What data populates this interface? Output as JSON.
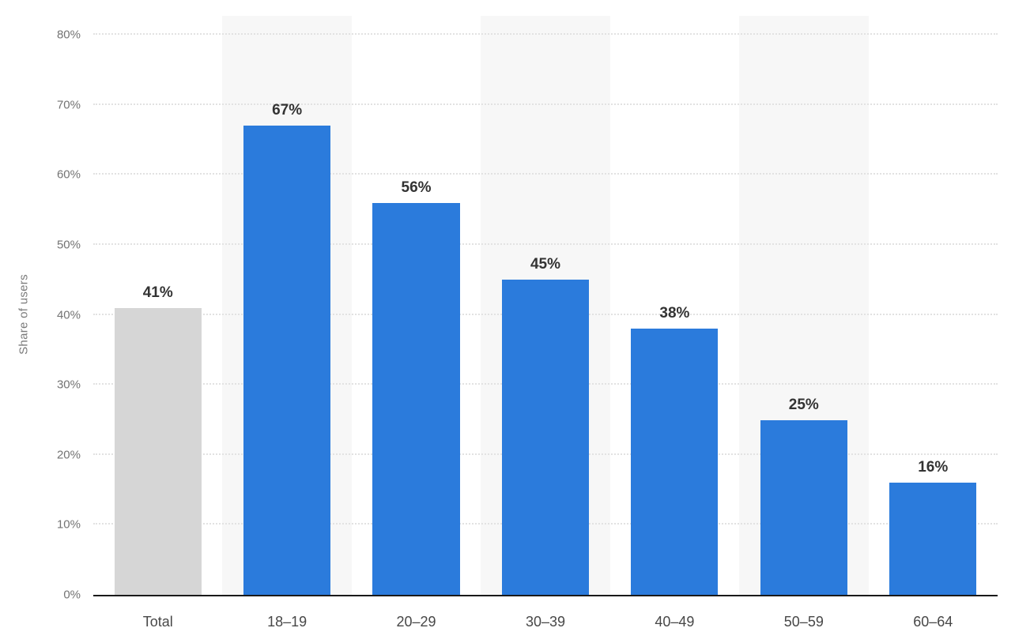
{
  "chart_data": {
    "type": "bar",
    "title": "",
    "xlabel": "",
    "ylabel": "Share of users",
    "categories": [
      "Total",
      "18–19",
      "20–29",
      "30–39",
      "40–49",
      "50–59",
      "60–64"
    ],
    "values": [
      41,
      67,
      56,
      45,
      38,
      25,
      16
    ],
    "value_labels": [
      "41%",
      "67%",
      "56%",
      "45%",
      "38%",
      "25%",
      "16%"
    ],
    "ylim": [
      0,
      80
    ],
    "ytick_step": 10,
    "ytick_suffix": "%",
    "grid": "horizontal-dotted",
    "legend": "none",
    "bar_colors": [
      "#d6d6d6",
      "#2b7bdc",
      "#2b7bdc",
      "#2b7bdc",
      "#2b7bdc",
      "#2b7bdc",
      "#2b7bdc"
    ]
  },
  "colors": {
    "bar_blue": "#2b7bdc",
    "bar_gray": "#d6d6d6",
    "column_band": "#f7f7f7",
    "gridline": "#e2e2e2",
    "axis_line": "#1a1a1a",
    "tick_text": "#737373",
    "category_text": "#474747",
    "value_text": "#333333",
    "background": "#ffffff"
  }
}
